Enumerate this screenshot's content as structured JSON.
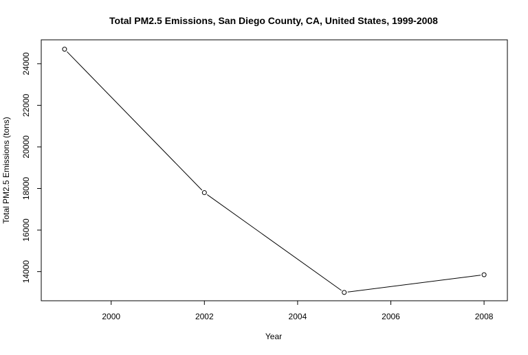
{
  "chart_data": {
    "type": "line",
    "title": "Total PM2.5 Emissions, San Diego County, CA, United States, 1999-2008",
    "xlabel": "Year",
    "ylabel": "Total PM2.5 Emissions (tons)",
    "x": [
      1999,
      2002,
      2005,
      2008
    ],
    "y": [
      24700,
      17800,
      13000,
      13850
    ],
    "xlim": [
      1998.5,
      2008.5
    ],
    "ylim": [
      12600,
      25150
    ],
    "xticks": [
      "2000",
      "2002",
      "2004",
      "2006",
      "2008"
    ],
    "yticks": [
      "14000",
      "16000",
      "18000",
      "20000",
      "22000",
      "24000"
    ],
    "grid": false,
    "legend": false,
    "line_color": "#000000",
    "marker": "open-circle"
  }
}
